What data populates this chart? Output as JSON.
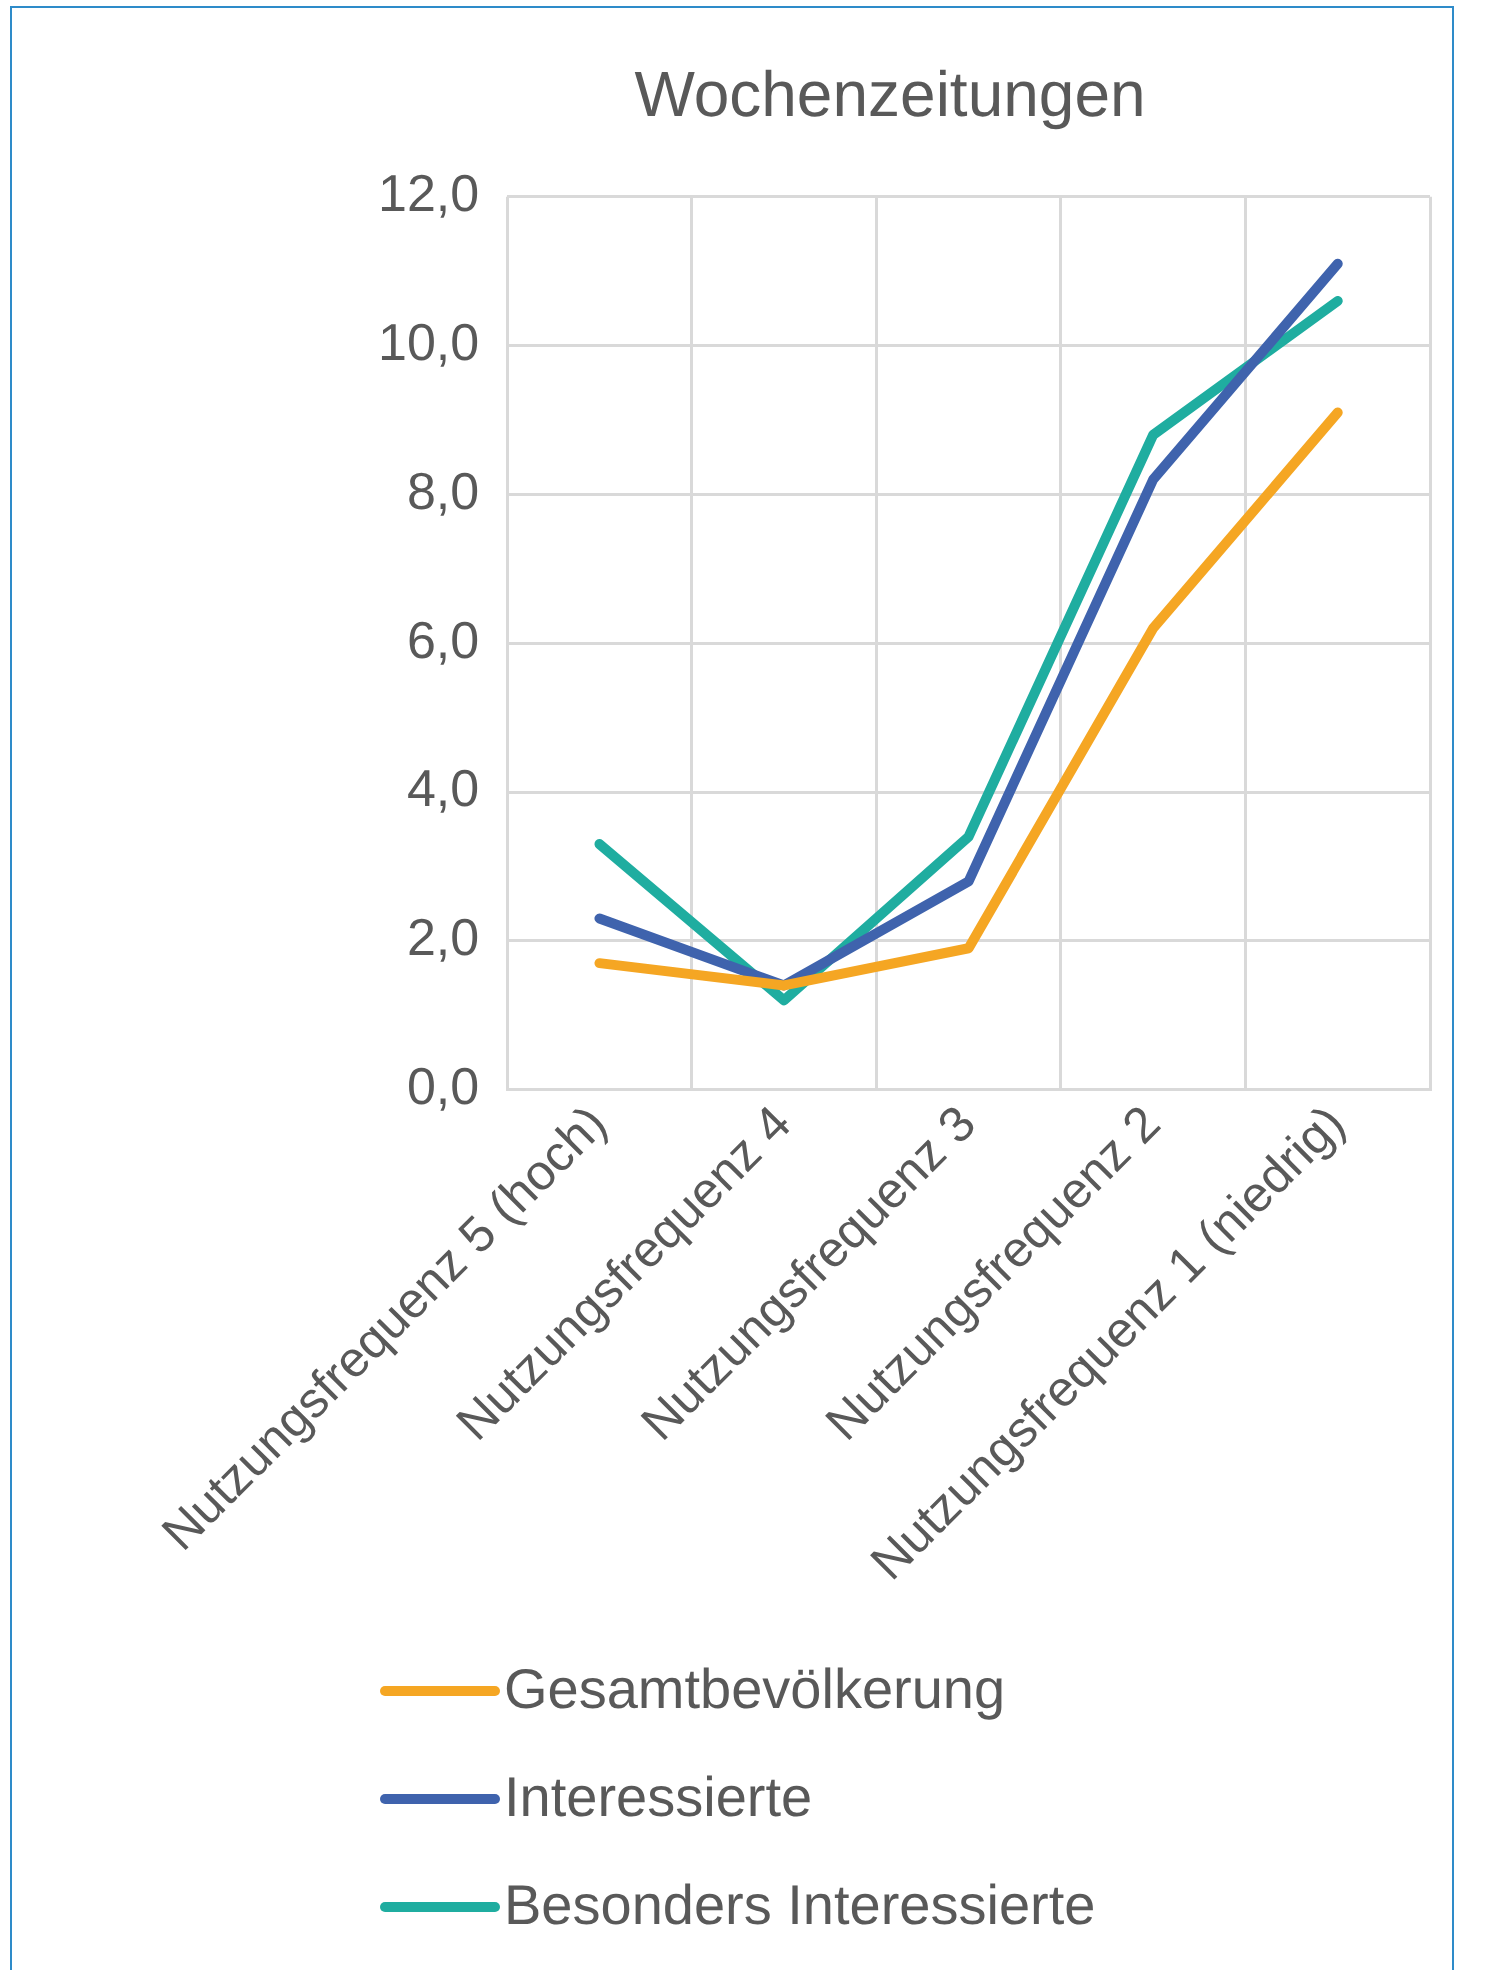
{
  "chart_data": {
    "type": "line",
    "title": "Wochenzeitungen",
    "categories": [
      "Nutzungsfrequenz 5 (hoch)",
      "Nutzungsfrequenz 4",
      "Nutzungsfrequenz 3",
      "Nutzungsfrequenz 2",
      "Nutzungsfrequenz 1 (niedrig)"
    ],
    "series": [
      {
        "name": "Gesamtbevölkerung",
        "color": "#f5a623",
        "values": [
          1.7,
          1.4,
          1.9,
          6.2,
          9.1
        ]
      },
      {
        "name": "Interessierte",
        "color": "#3f63ad",
        "values": [
          2.3,
          1.4,
          2.8,
          8.2,
          11.1
        ]
      },
      {
        "name": "Besonders Interessierte",
        "color": "#1fada0",
        "values": [
          3.3,
          1.2,
          3.4,
          8.8,
          10.6
        ]
      }
    ],
    "ylim": [
      0,
      12
    ],
    "yticks": [
      {
        "value": 0,
        "label": "0,0"
      },
      {
        "value": 2,
        "label": "2,0"
      },
      {
        "value": 4,
        "label": "4,0"
      },
      {
        "value": 6,
        "label": "6,0"
      },
      {
        "value": 8,
        "label": "8,0"
      },
      {
        "value": 10,
        "label": "10,0"
      },
      {
        "value": 12,
        "label": "12,0"
      }
    ],
    "grid": true,
    "legend": "bottom",
    "marker": "none",
    "line_style": "solid"
  }
}
